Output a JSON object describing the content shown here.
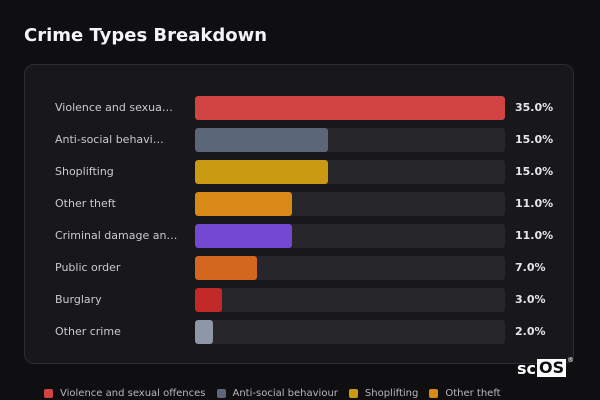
{
  "chart_data": {
    "type": "bar",
    "orientation": "horizontal",
    "title": "Crime Types Breakdown",
    "categories": [
      "Violence and sexua…",
      "Anti-social behavi…",
      "Shoplifting",
      "Other theft",
      "Criminal damage an…",
      "Public order",
      "Burglary",
      "Other crime"
    ],
    "values": [
      35.0,
      15.0,
      15.0,
      11.0,
      11.0,
      7.0,
      3.0,
      2.0
    ],
    "value_labels": [
      "35.0%",
      "15.0%",
      "15.0%",
      "11.0%",
      "11.0%",
      "7.0%",
      "3.0%",
      "2.0%"
    ],
    "colors": [
      "#d04444",
      "#5b6678",
      "#c99a12",
      "#d98a16",
      "#7448d0",
      "#d3671f",
      "#c22a2a",
      "#8e97a6"
    ],
    "xlim": [
      0,
      35
    ],
    "unit": "%",
    "legend": {
      "position": "bottom",
      "entries": [
        {
          "label": "Violence and sexual offences",
          "color": "#d04444"
        },
        {
          "label": "Anti-social behaviour",
          "color": "#5b6678"
        },
        {
          "label": "Shoplifting",
          "color": "#c99a12"
        },
        {
          "label": "Other theft",
          "color": "#d98a16"
        }
      ]
    }
  },
  "watermark": {
    "prefix": "sc",
    "boxed": "OS",
    "mark": "®"
  }
}
